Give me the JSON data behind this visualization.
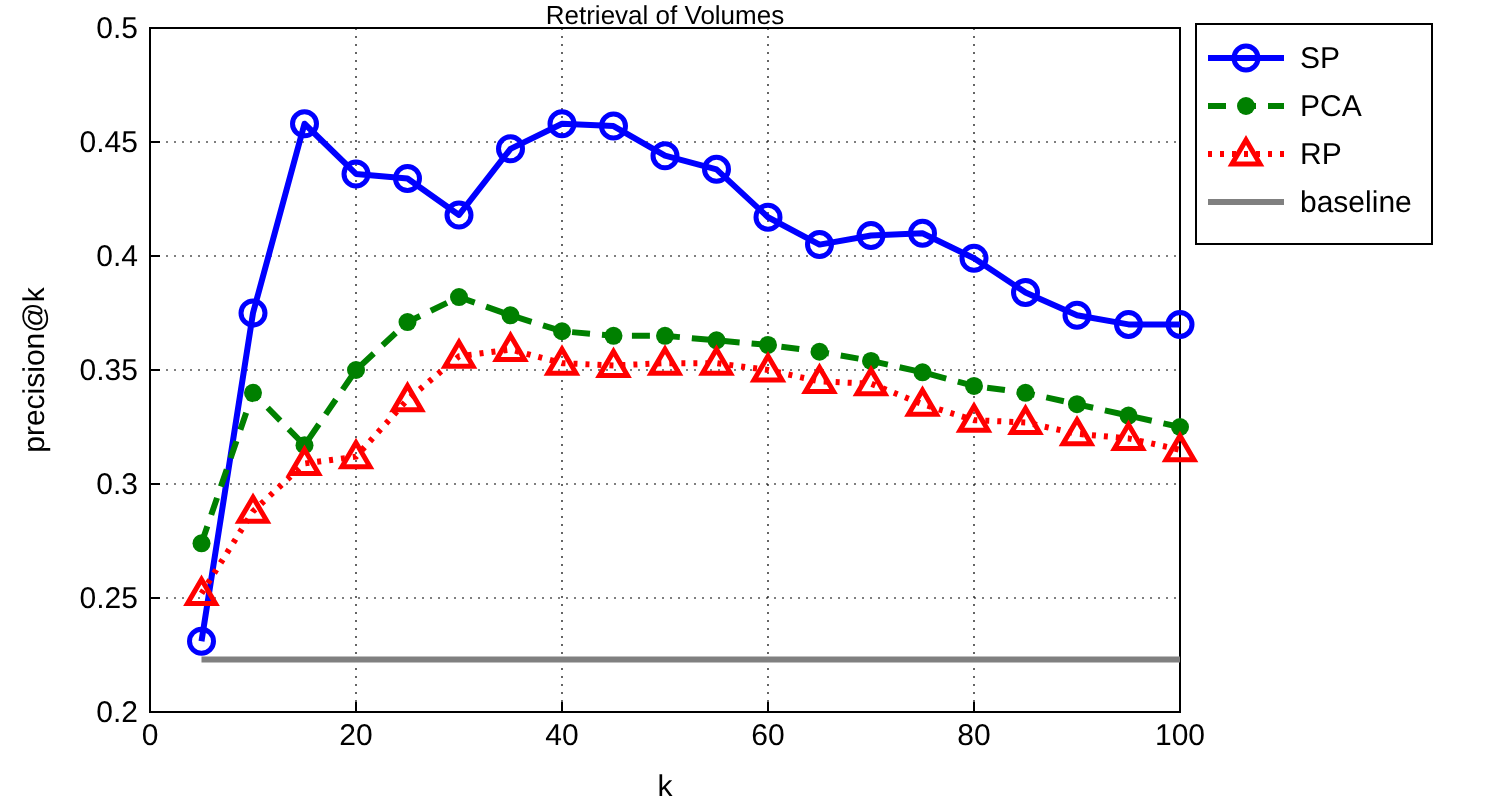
{
  "chart_data": {
    "type": "line",
    "title": "Retrieval of Volumes",
    "xlabel": "k",
    "ylabel": "precision@k",
    "xlim": [
      0,
      100
    ],
    "xticks": [
      0,
      20,
      40,
      60,
      80,
      100
    ],
    "ylim": [
      0.2,
      0.5
    ],
    "yticks": [
      0.2,
      0.25,
      0.3,
      0.35,
      0.4,
      0.45,
      0.5
    ],
    "grid": true,
    "legend": "top right",
    "series": [
      {
        "name": "SP",
        "color": "#0000ff",
        "marker": "circle",
        "line_style": "solid",
        "x": [
          5,
          10,
          15,
          20,
          25,
          30,
          35,
          40,
          45,
          50,
          55,
          60,
          65,
          70,
          75,
          80,
          85,
          90,
          95,
          100
        ],
        "values": [
          0.231,
          0.375,
          0.458,
          0.436,
          0.434,
          0.418,
          0.447,
          0.458,
          0.457,
          0.444,
          0.438,
          0.417,
          0.405,
          0.409,
          0.41,
          0.399,
          0.384,
          0.374,
          0.37,
          0.37
        ]
      },
      {
        "name": "PCA",
        "color": "#008000",
        "marker": "filled-circle",
        "line_style": "dashed",
        "x": [
          5,
          10,
          15,
          20,
          25,
          30,
          35,
          40,
          45,
          50,
          55,
          60,
          65,
          70,
          75,
          80,
          85,
          90,
          95,
          100
        ],
        "values": [
          0.274,
          0.34,
          0.317,
          0.35,
          0.371,
          0.382,
          0.374,
          0.367,
          0.365,
          0.365,
          0.363,
          0.361,
          0.358,
          0.354,
          0.349,
          0.343,
          0.34,
          0.335,
          0.33,
          0.325
        ]
      },
      {
        "name": "RP",
        "color": "#ff0000",
        "marker": "triangle",
        "line_style": "dotted",
        "x": [
          5,
          10,
          15,
          20,
          25,
          30,
          35,
          40,
          45,
          50,
          55,
          60,
          65,
          70,
          75,
          80,
          85,
          90,
          95,
          100
        ],
        "values": [
          0.252,
          0.288,
          0.309,
          0.312,
          0.337,
          0.356,
          0.359,
          0.353,
          0.352,
          0.353,
          0.353,
          0.35,
          0.345,
          0.344,
          0.335,
          0.328,
          0.327,
          0.322,
          0.32,
          0.315
        ]
      },
      {
        "name": "baseline",
        "color": "#808080",
        "marker": "none",
        "line_style": "solid",
        "x": [
          5,
          100
        ],
        "values": [
          0.223,
          0.223
        ]
      }
    ]
  }
}
